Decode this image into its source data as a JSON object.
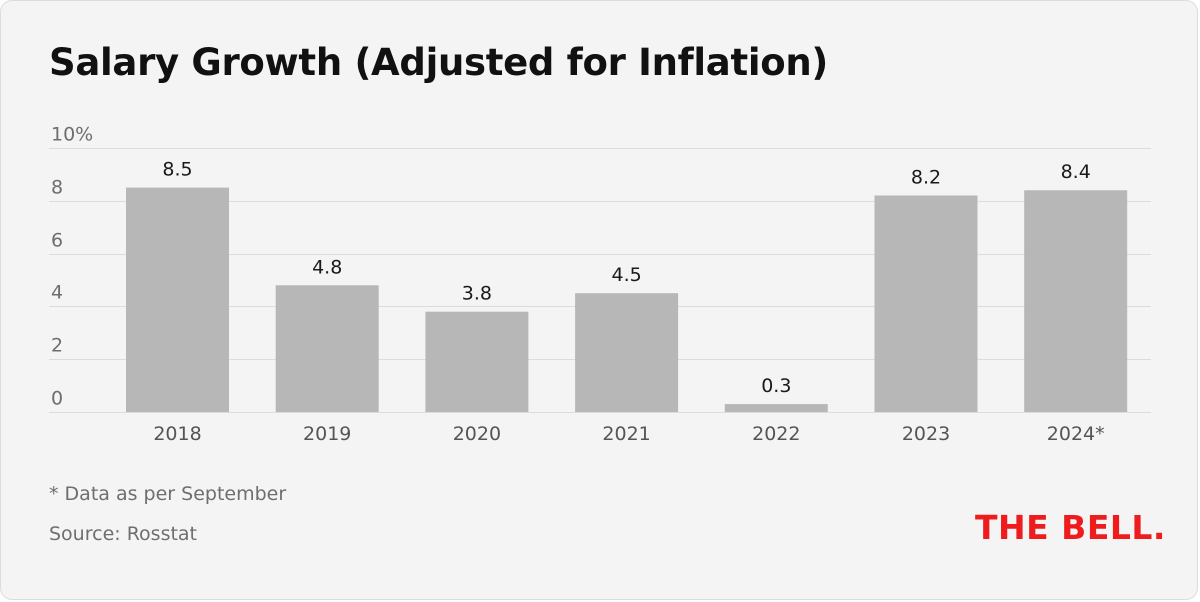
{
  "colors": {
    "background": "#f4f4f4",
    "bar": "#b7b7b7",
    "grid": "#dcdcdc",
    "brand": "#ee1c1c"
  },
  "chart_data": {
    "type": "bar",
    "title": "Salary Growth (Adjusted for Inflation)",
    "categories": [
      "2018",
      "2019",
      "2020",
      "2021",
      "2022",
      "2023",
      "2024*"
    ],
    "values": [
      8.5,
      4.8,
      3.8,
      4.5,
      0.3,
      8.2,
      8.4
    ],
    "value_labels": [
      "8.5",
      "4.8",
      "3.8",
      "4.5",
      "0.3",
      "8.2",
      "8.4"
    ],
    "y_ticks": [
      0,
      2,
      4,
      6,
      8,
      10
    ],
    "y_tick_labels": [
      "0",
      "2",
      "4",
      "6",
      "8",
      "10%"
    ],
    "ylim": [
      0,
      10
    ],
    "grid": true,
    "legend": "none"
  },
  "footnote": "* Data as per September",
  "source": "Source: Rosstat",
  "brand_logo": "THE BELL."
}
